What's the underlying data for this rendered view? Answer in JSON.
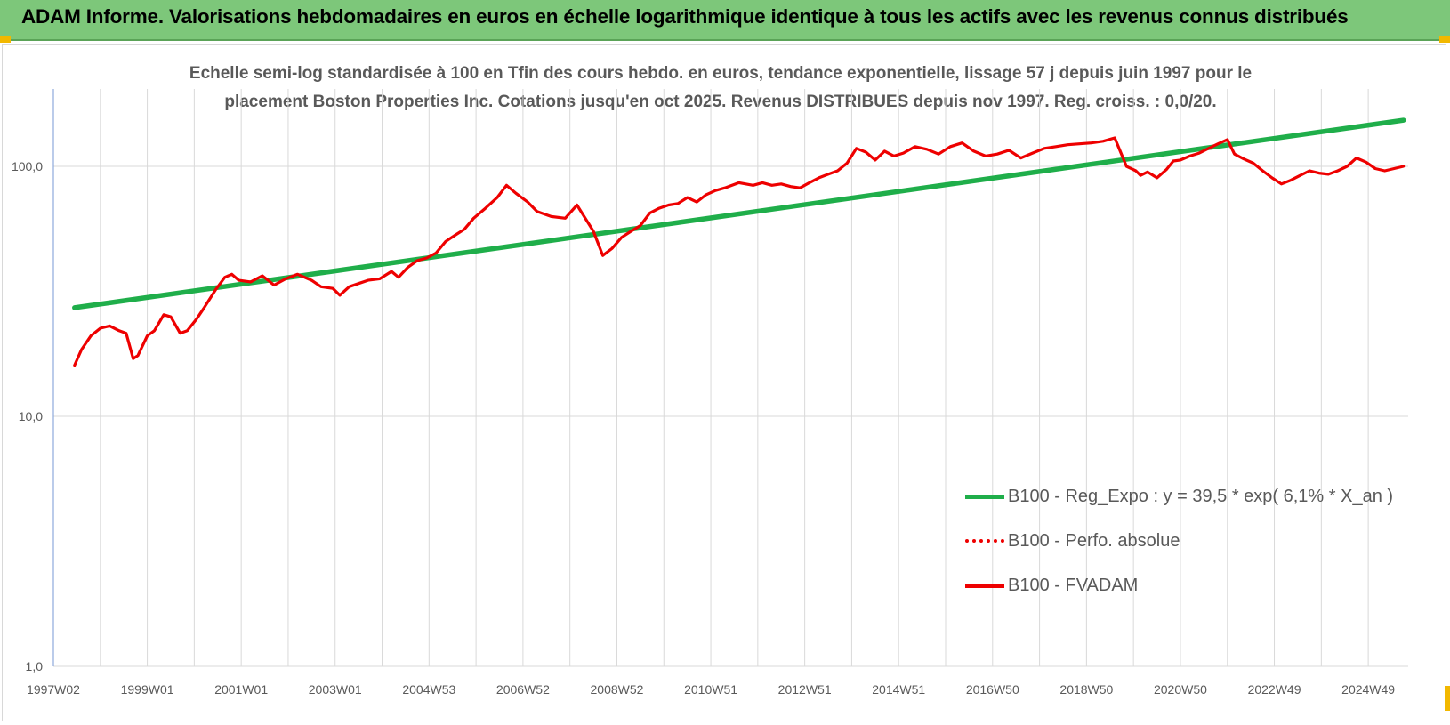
{
  "banner": {
    "title": "ADAM Informe. Valorisations hebdomadaires en euros en échelle logarithmique identique à tous les actifs avec les revenus connus distribués"
  },
  "colors": {
    "banner_bg": "#7dc77a",
    "regression": "#1fae4a",
    "fvadam": "#ee0000",
    "perfo": "#ee0000",
    "grid": "#d9d9d9",
    "text": "#595959"
  },
  "chart_data": {
    "type": "line",
    "title_line1": "Echelle semi-log standardisée à 100 en Tfin des cours hebdo. en euros, tendance exponentielle, lissage 57 j depuis juin 1997 pour le",
    "title_line2": "placement Boston Properties Inc.  Cotations jusqu'en oct 2025. Revenus DISTRIBUES depuis nov 1997.  Reg. croiss. : 0,0/20.",
    "y_scale": "log",
    "ylim": [
      1,
      200
    ],
    "y_ticks": [
      1,
      10,
      100
    ],
    "y_tick_labels": [
      "1,0",
      "10,0",
      "100,0"
    ],
    "x_tick_labels": [
      "1997W02",
      "1999W01",
      "2001W01",
      "2003W01",
      "2004W53",
      "2006W52",
      "2008W52",
      "2010W51",
      "2012W51",
      "2014W51",
      "2016W50",
      "2018W50",
      "2020W50",
      "2022W49",
      "2024W49"
    ],
    "x_tick_years": [
      1997.0,
      1999.0,
      2001.0,
      2003.0,
      2005.0,
      2007.0,
      2009.0,
      2011.0,
      2013.0,
      2015.0,
      2017.0,
      2019.0,
      2021.0,
      2023.0,
      2025.0
    ],
    "xlim": [
      1997.0,
      2025.85
    ],
    "grid": "vertical lines at 2 per tick interval, horizontal at decades",
    "legend_position": "lower-right",
    "series": [
      {
        "name": "B100 - Reg_Expo : y = 39,5 * exp( 6,1% *  X_an )",
        "style": "solid-thick",
        "x": [
          1997.45,
          2025.75
        ],
        "y": [
          27.2,
          153.0
        ]
      },
      {
        "name": "B100 - Perfo. absolue",
        "style": "dotted",
        "x": [],
        "y": []
      },
      {
        "name": "B100 - FVADAM",
        "style": "solid",
        "x": [
          1997.45,
          1997.6,
          1997.8,
          1998.0,
          1998.2,
          1998.4,
          1998.55,
          1998.7,
          1998.8,
          1999.0,
          1999.15,
          1999.35,
          1999.5,
          1999.7,
          1999.85,
          2000.05,
          2000.2,
          2000.45,
          2000.65,
          2000.8,
          2000.95,
          2001.2,
          2001.45,
          2001.7,
          2001.95,
          2002.2,
          2002.5,
          2002.7,
          2002.95,
          2003.1,
          2003.3,
          2003.5,
          2003.7,
          2003.95,
          2004.2,
          2004.35,
          2004.55,
          2004.75,
          2004.95,
          2005.15,
          2005.35,
          2005.55,
          2005.75,
          2005.95,
          2006.2,
          2006.45,
          2006.65,
          2006.85,
          2007.1,
          2007.3,
          2007.6,
          2007.9,
          2008.15,
          2008.5,
          2008.7,
          2008.9,
          2009.1,
          2009.3,
          2009.5,
          2009.7,
          2009.9,
          2010.1,
          2010.3,
          2010.5,
          2010.7,
          2010.9,
          2011.1,
          2011.3,
          2011.6,
          2011.9,
          2012.1,
          2012.3,
          2012.5,
          2012.7,
          2012.9,
          2013.1,
          2013.3,
          2013.5,
          2013.7,
          2013.9,
          2014.1,
          2014.3,
          2014.5,
          2014.7,
          2014.9,
          2015.1,
          2015.35,
          2015.6,
          2015.85,
          2016.1,
          2016.35,
          2016.6,
          2016.85,
          2017.1,
          2017.35,
          2017.6,
          2017.85,
          2018.1,
          2018.35,
          2018.6,
          2018.85,
          2019.1,
          2019.35,
          2019.6,
          2019.85,
          2020.05,
          2020.15,
          2020.3,
          2020.5,
          2020.7,
          2020.85,
          2021.0,
          2021.2,
          2021.4,
          2021.6,
          2021.8,
          2022.0,
          2022.15,
          2022.35,
          2022.55,
          2022.75,
          2022.95,
          2023.15,
          2023.35,
          2023.55,
          2023.75,
          2023.95,
          2024.15,
          2024.35,
          2024.55,
          2024.75,
          2024.95,
          2025.15,
          2025.35,
          2025.55,
          2025.75
        ],
        "y": [
          16.0,
          18.5,
          21.0,
          22.5,
          23.0,
          22.0,
          21.5,
          17.0,
          17.5,
          21.0,
          22.0,
          25.5,
          25.0,
          21.5,
          22.0,
          24.5,
          27.0,
          32.0,
          36.0,
          37.0,
          35.0,
          34.5,
          36.5,
          33.5,
          35.5,
          37.0,
          35.0,
          33.0,
          32.5,
          30.5,
          33.0,
          34.0,
          35.0,
          35.5,
          38.0,
          36.0,
          39.5,
          42.0,
          43.0,
          45.0,
          50.0,
          53.0,
          56.0,
          62.0,
          68.0,
          75.0,
          84.0,
          78.0,
          72.0,
          66.0,
          63.0,
          62.0,
          70.0,
          55.0,
          44.0,
          47.0,
          52.0,
          55.0,
          58.0,
          65.0,
          68.0,
          70.0,
          71.0,
          75.0,
          72.0,
          77.0,
          80.0,
          82.0,
          86.0,
          84.0,
          86.0,
          84.0,
          85.0,
          83.0,
          82.0,
          86.0,
          90.0,
          93.0,
          96.0,
          103.0,
          118.0,
          114.0,
          106.0,
          115.0,
          110.0,
          113.0,
          120.0,
          117.0,
          112.0,
          120.0,
          124.0,
          115.0,
          110.0,
          112.0,
          116.0,
          108.0,
          113.0,
          118.0,
          120.0,
          122.0,
          123.0,
          124.0,
          126.0,
          130.0,
          100.0,
          96.0,
          92.0,
          95.0,
          90.0,
          97.0,
          105.0,
          106.0,
          110.0,
          113.0,
          118.0,
          123.0,
          128.0,
          112.0,
          107.0,
          103.0,
          96.0,
          90.0,
          85.0,
          88.0,
          92.0,
          96.0,
          94.0,
          93.0,
          96.0,
          100.0,
          108.0,
          104.0,
          98.0,
          96.0,
          98.0,
          100.0
        ]
      }
    ]
  }
}
